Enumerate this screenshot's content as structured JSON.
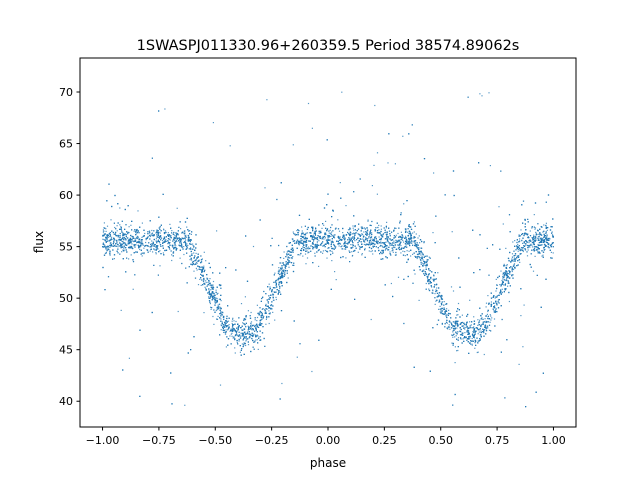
{
  "chart_data": {
    "type": "scatter",
    "title": "1SWASPJ011330.96+260359.5 Period 38574.89062s",
    "xlabel": "phase",
    "ylabel": "flux",
    "xlim": [
      -1.1,
      1.1
    ],
    "ylim": [
      37.5,
      73.3
    ],
    "xticks": [
      -1.0,
      -0.75,
      -0.5,
      -0.25,
      0.0,
      0.25,
      0.5,
      0.75,
      1.0
    ],
    "xtick_labels": [
      "−1.00",
      "−0.75",
      "−0.50",
      "−0.25",
      "0.00",
      "0.25",
      "0.50",
      "0.75",
      "1.00"
    ],
    "yticks": [
      40,
      45,
      50,
      55,
      60,
      65,
      70
    ],
    "ytick_labels": [
      "40",
      "45",
      "50",
      "55",
      "60",
      "65",
      "70"
    ],
    "grid": false,
    "series_color": "#1f77b4",
    "phase_range": [
      -1.0,
      1.0
    ],
    "light_curve_model": {
      "baseline_flux": 55.6,
      "baseline_scatter": 0.7,
      "eclipse_centers": [
        -0.38,
        0.62
      ],
      "eclipse_half_width": 0.24,
      "eclipse_flat_half_width": 0.075,
      "eclipse_bottom_flux": 47.3,
      "eclipse_core_min_flux": 46.6,
      "n_points": 7000,
      "outlier_fraction": 0.06,
      "outlier_range": [
        39,
        71.5
      ]
    }
  }
}
